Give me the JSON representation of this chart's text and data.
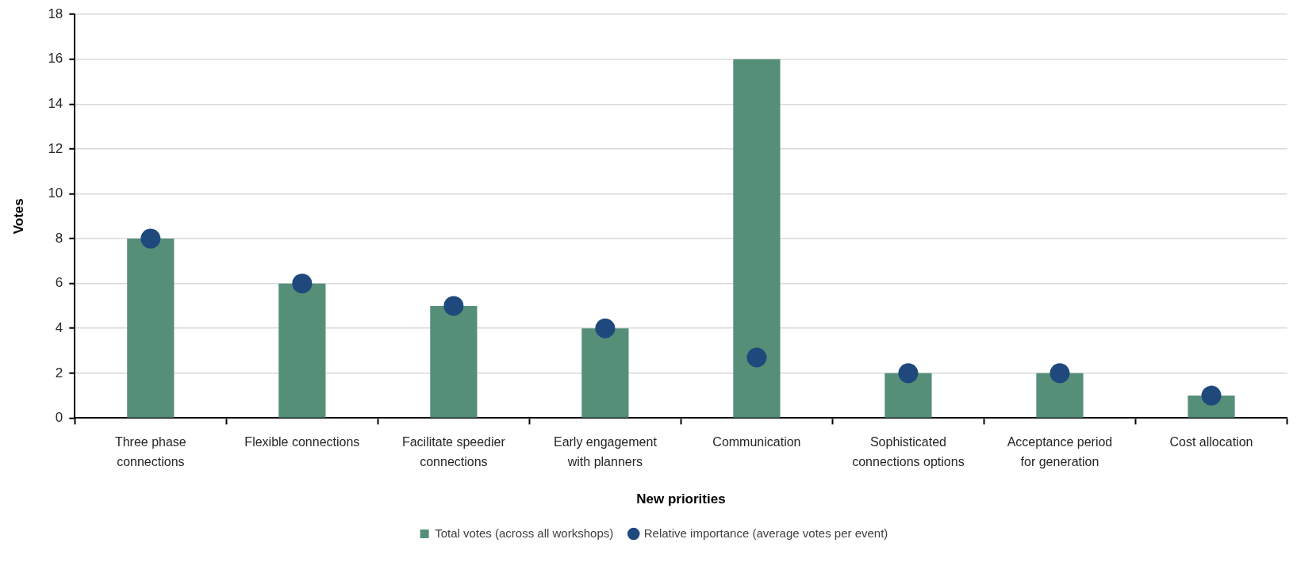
{
  "chart_data": {
    "type": "bar",
    "categories": [
      "Three phase connections",
      "Flexible connections",
      "Facilitate speedier connections",
      "Early engagement with planners",
      "Communication",
      "Sophisticated connections options",
      "Acceptance period for generation",
      "Cost allocation"
    ],
    "series": [
      {
        "type": "bar",
        "name": "Total votes (across all workshops)",
        "color": "#568f78",
        "values": [
          8,
          6,
          5,
          4,
          16,
          2,
          2,
          1
        ]
      },
      {
        "type": "scatter",
        "name": "Relative importance (average votes per event)",
        "color": "#1f497d",
        "x": [
          "Three phase connections",
          "Flexible connections",
          "Facilitate speedier connections",
          "Early engagement with planners",
          "Communication",
          "Sophisticated connections options",
          "Acceptance period for generation",
          "Cost allocation"
        ],
        "values": [
          8,
          6,
          5,
          4,
          2.7,
          2,
          2,
          1
        ]
      }
    ],
    "xlabel": "New priorities",
    "ylabel": "Votes",
    "ylim": [
      0,
      18
    ],
    "yticks": [
      0,
      2,
      4,
      6,
      8,
      10,
      12,
      14,
      16,
      18
    ],
    "grid": "y",
    "legend": "bottom",
    "marker": "circle"
  }
}
